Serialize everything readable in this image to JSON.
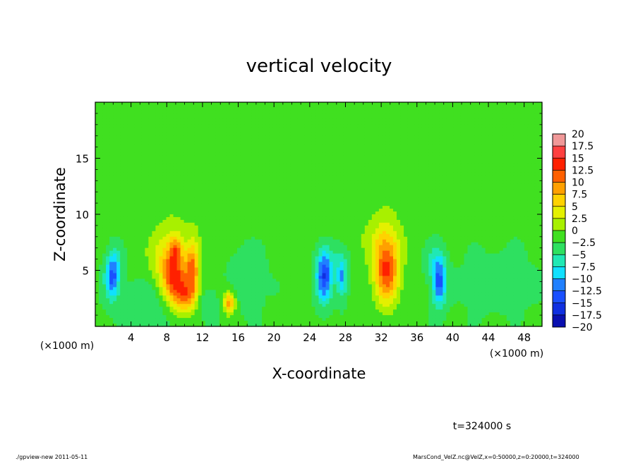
{
  "chart_data": {
    "type": "heatmap",
    "title": "vertical velocity",
    "xlabel": "X-coordinate",
    "ylabel": "Z-coordinate",
    "x_unit": "(×1000 m)",
    "y_unit": "(×1000 m)",
    "xlim": [
      0,
      50
    ],
    "ylim": [
      0,
      20
    ],
    "x_ticks": [
      4,
      8,
      12,
      16,
      20,
      24,
      28,
      32,
      36,
      40,
      44,
      48
    ],
    "y_ticks": [
      5,
      10,
      15
    ],
    "colorbar": {
      "levels": [
        20,
        17.5,
        15,
        12.5,
        10,
        7.5,
        5,
        2.5,
        0,
        -2.5,
        -5,
        -7.5,
        -10,
        -12.5,
        -15,
        -17.5,
        -20
      ],
      "level_labels": [
        "20",
        "17.5",
        "15",
        "12.5",
        "10",
        "7.5",
        "5",
        "2.5",
        "0",
        "−2.5",
        "−5",
        "−7.5",
        "−10",
        "−12.5",
        "−15",
        "−17.5",
        "−20"
      ],
      "colors": [
        "#f09898",
        "#ff4040",
        "#ff2000",
        "#ff6000",
        "#ffa000",
        "#ffd200",
        "#e4f000",
        "#a8f000",
        "#40e020",
        "#2ee060",
        "#20e8b4",
        "#10e0ff",
        "#2080ff",
        "#1a50ff",
        "#1030e0",
        "#0a10b0",
        "#7820b0"
      ]
    },
    "features": [
      {
        "x": 1.9,
        "z": 4.4,
        "amp": -11,
        "sx": 0.55,
        "sz": 1.3
      },
      {
        "x": 2.3,
        "z": 6.2,
        "amp": -3,
        "sx": 0.5,
        "sz": 1.0
      },
      {
        "x": 8.2,
        "z": 6.0,
        "amp": 6.5,
        "sx": 1.5,
        "sz": 1.8
      },
      {
        "x": 8.7,
        "z": 4.5,
        "amp": 8,
        "sx": 0.9,
        "sz": 1.6
      },
      {
        "x": 9.7,
        "z": 3.2,
        "amp": 9,
        "sx": 1.2,
        "sz": 1.4
      },
      {
        "x": 9.0,
        "z": 6.8,
        "amp": 7,
        "sx": 0.45,
        "sz": 0.9
      },
      {
        "x": 10.9,
        "z": 5.2,
        "amp": 10.5,
        "sx": 0.5,
        "sz": 1.6
      },
      {
        "x": 10.3,
        "z": 2.5,
        "amp": 5,
        "sx": 0.8,
        "sz": 0.8
      },
      {
        "x": 12.2,
        "z": 2.2,
        "amp": -2.5,
        "sx": 0.9,
        "sz": 1.0
      },
      {
        "x": 15.0,
        "z": 2.1,
        "amp": 11,
        "sx": 0.45,
        "sz": 0.7
      },
      {
        "x": 17.0,
        "z": 5.0,
        "amp": -2,
        "sx": 1.5,
        "sz": 2.5
      },
      {
        "x": 25.6,
        "z": 4.4,
        "amp": -12,
        "sx": 0.6,
        "sz": 1.6
      },
      {
        "x": 27.6,
        "z": 4.3,
        "amp": -8,
        "sx": 0.4,
        "sz": 1.2
      },
      {
        "x": 26.5,
        "z": 6.0,
        "amp": -2.5,
        "sx": 1.2,
        "sz": 1.4
      },
      {
        "x": 32.6,
        "z": 4.8,
        "amp": 14,
        "sx": 1.0,
        "sz": 2.0
      },
      {
        "x": 32.3,
        "z": 7.5,
        "amp": 4,
        "sx": 1.3,
        "sz": 1.6
      },
      {
        "x": 38.5,
        "z": 3.9,
        "amp": -11,
        "sx": 0.55,
        "sz": 1.5
      },
      {
        "x": 38.0,
        "z": 6.0,
        "amp": -3,
        "sx": 0.8,
        "sz": 1.2
      },
      {
        "x": 30.0,
        "z": 9.5,
        "amp": 1.3,
        "sx": 6.0,
        "sz": 2.5
      },
      {
        "x": 12.0,
        "z": 9.5,
        "amp": 1.5,
        "sx": 5.0,
        "sz": 2.0
      },
      {
        "x": 6.0,
        "z": 2.0,
        "amp": -2.5,
        "sx": 2.5,
        "sz": 1.5
      },
      {
        "x": 45.0,
        "z": 4.0,
        "amp": -1.5,
        "sx": 3.0,
        "sz": 2.0
      }
    ]
  },
  "footer": {
    "time_label": "t=324000 s",
    "left_note": "./gpview-new  2011-05-11",
    "right_note": "MarsCond_VelZ.nc@VelZ,x=0:50000,z=0:20000,t=324000"
  }
}
